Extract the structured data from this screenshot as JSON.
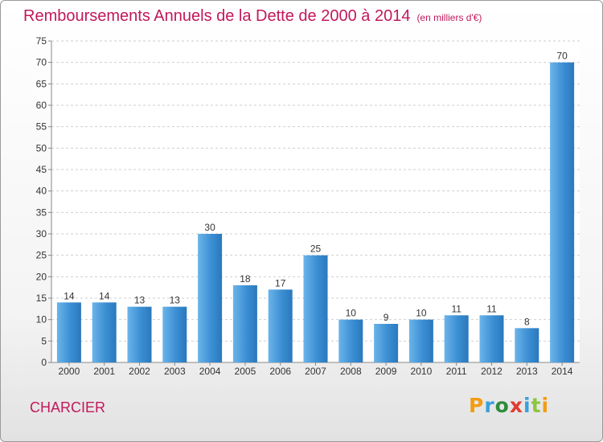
{
  "chart_data": {
    "type": "bar",
    "title": "Remboursements Annuels de la Dette de 2000 à 2014",
    "subtitle": "(en milliers d'€)",
    "categories": [
      "2000",
      "2001",
      "2002",
      "2003",
      "2004",
      "2005",
      "2006",
      "2007",
      "2008",
      "2009",
      "2010",
      "2011",
      "2012",
      "2013",
      "2014"
    ],
    "values": [
      14,
      14,
      13,
      13,
      30,
      18,
      17,
      25,
      10,
      9,
      10,
      11,
      11,
      8,
      70
    ],
    "ylim": [
      0,
      75
    ],
    "yticks": [
      0,
      5,
      10,
      15,
      20,
      25,
      30,
      35,
      40,
      45,
      50,
      55,
      60,
      65,
      70,
      75
    ],
    "grid": true,
    "bar_color": "#3c8fd3"
  },
  "commune": "CHARCIER",
  "logo": {
    "letters": [
      "P",
      "r",
      "o",
      "x",
      "i",
      "t",
      "i"
    ],
    "colors": [
      "#f39c12",
      "#3aa0dc",
      "#2e8b3a",
      "#e03c31",
      "#3aa0dc",
      "#8dc63f",
      "#f39c12"
    ]
  }
}
